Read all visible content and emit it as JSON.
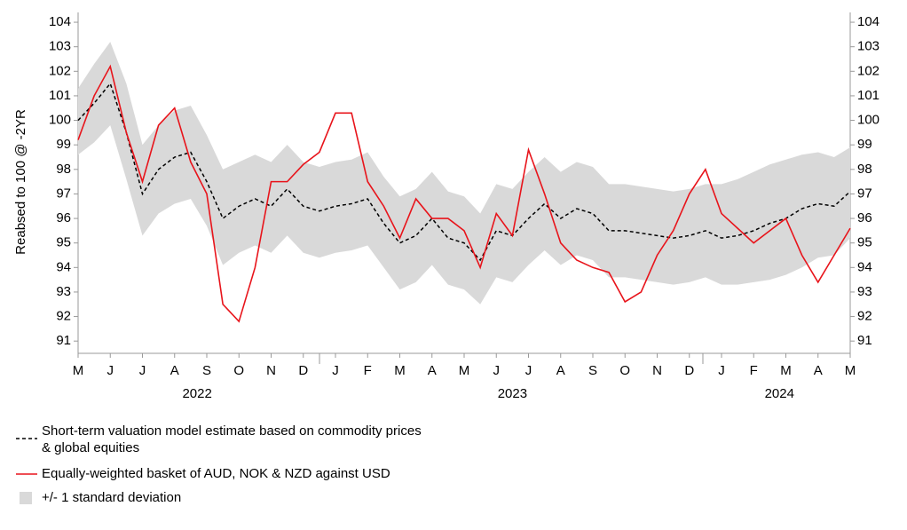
{
  "chart_data": {
    "type": "line",
    "y_label": "Reabsed to 100 @ -2YR",
    "x": [
      0,
      0.5,
      1,
      1.5,
      2,
      2.5,
      3,
      3.5,
      4,
      4.5,
      5,
      5.5,
      6,
      6.5,
      7,
      7.5,
      8,
      8.5,
      9,
      9.5,
      10,
      10.5,
      11,
      11.5,
      12,
      12.5,
      13,
      13.5,
      14,
      14.5,
      15,
      15.5,
      16,
      16.5,
      17,
      17.5,
      18,
      18.5,
      19,
      19.5,
      20,
      20.5,
      21,
      21.5,
      22,
      22.5,
      23,
      23.5,
      24
    ],
    "xlim": [
      0,
      24
    ],
    "xticks": [
      {
        "value": 0,
        "label": "M"
      },
      {
        "value": 1,
        "label": "J"
      },
      {
        "value": 2,
        "label": "J"
      },
      {
        "value": 3,
        "label": "A"
      },
      {
        "value": 4,
        "label": "S"
      },
      {
        "value": 5,
        "label": "O"
      },
      {
        "value": 6,
        "label": "N"
      },
      {
        "value": 7,
        "label": "D"
      },
      {
        "value": 8,
        "label": "J"
      },
      {
        "value": 9,
        "label": "F"
      },
      {
        "value": 10,
        "label": "M"
      },
      {
        "value": 11,
        "label": "A"
      },
      {
        "value": 12,
        "label": "M"
      },
      {
        "value": 13,
        "label": "J"
      },
      {
        "value": 14,
        "label": "J"
      },
      {
        "value": 15,
        "label": "A"
      },
      {
        "value": 16,
        "label": "S"
      },
      {
        "value": 17,
        "label": "O"
      },
      {
        "value": 18,
        "label": "N"
      },
      {
        "value": 19,
        "label": "D"
      },
      {
        "value": 20,
        "label": "J"
      },
      {
        "value": 21,
        "label": "F"
      },
      {
        "value": 22,
        "label": "M"
      },
      {
        "value": 23,
        "label": "A"
      },
      {
        "value": 24,
        "label": "M"
      }
    ],
    "x_group_labels": [
      "2022",
      "2023",
      "2024"
    ],
    "ylim": [
      90.5,
      104.4
    ],
    "yticks": [
      91,
      92,
      93,
      94,
      95,
      96,
      97,
      98,
      99,
      100,
      101,
      102,
      103,
      104
    ],
    "y2lim": [
      90.5,
      104.4
    ],
    "y2ticks": [
      91,
      92,
      93,
      94,
      95,
      96,
      97,
      98,
      99,
      100,
      101,
      102,
      103,
      104
    ],
    "band": {
      "name": "+/- 1 standard deviation",
      "color": "#d9d9d9",
      "upper": [
        101.3,
        102.3,
        103.2,
        101.5,
        99.0,
        99.8,
        100.4,
        100.6,
        99.4,
        98.0,
        98.3,
        98.6,
        98.3,
        99.0,
        98.3,
        98.1,
        98.3,
        98.4,
        98.7,
        97.7,
        96.9,
        97.2,
        97.9,
        97.1,
        96.9,
        96.2,
        97.4,
        97.2,
        97.9,
        98.5,
        97.9,
        98.3,
        98.1,
        97.4,
        97.4,
        97.3,
        97.2,
        97.1,
        97.2,
        97.4,
        97.4,
        97.6,
        97.9,
        98.2,
        98.4,
        98.6,
        98.7,
        98.5,
        98.9
      ],
      "lower": [
        98.6,
        99.1,
        99.8,
        97.6,
        95.3,
        96.2,
        96.6,
        96.8,
        95.7,
        94.1,
        94.6,
        94.9,
        94.6,
        95.3,
        94.6,
        94.4,
        94.6,
        94.7,
        94.9,
        94.0,
        93.1,
        93.4,
        94.1,
        93.3,
        93.1,
        92.5,
        93.6,
        93.4,
        94.1,
        94.7,
        94.1,
        94.5,
        94.3,
        93.6,
        93.6,
        93.5,
        93.4,
        93.3,
        93.4,
        93.6,
        93.3,
        93.3,
        93.4,
        93.5,
        93.7,
        94.0,
        94.4,
        94.5,
        95.2
      ]
    },
    "series": [
      {
        "name": "Short-term valuation model estimate based on commodity prices\n& global equities",
        "color": "#000000",
        "dash": true,
        "values": [
          100.0,
          100.7,
          101.5,
          99.5,
          97.0,
          98.0,
          98.5,
          98.7,
          97.5,
          96.0,
          96.5,
          96.8,
          96.5,
          97.2,
          96.5,
          96.3,
          96.5,
          96.6,
          96.8,
          95.8,
          95.0,
          95.3,
          96.0,
          95.2,
          95.0,
          94.3,
          95.5,
          95.3,
          96.0,
          96.6,
          96.0,
          96.4,
          96.2,
          95.5,
          95.5,
          95.4,
          95.3,
          95.2,
          95.3,
          95.5,
          95.2,
          95.3,
          95.5,
          95.8,
          96.0,
          96.4,
          96.6,
          96.5,
          97.1
        ]
      },
      {
        "name": "Equally-weighted basket of AUD, NOK & NZD against USD",
        "color": "#e8141b",
        "dash": false,
        "values": [
          99.2,
          101.0,
          102.2,
          99.5,
          97.5,
          99.8,
          100.5,
          98.3,
          97.0,
          92.5,
          91.8,
          94.0,
          97.5,
          97.5,
          98.2,
          98.7,
          100.3,
          100.3,
          97.5,
          96.5,
          95.2,
          96.8,
          96.0,
          96.0,
          95.5,
          94.0,
          96.2,
          95.3,
          98.8,
          97.0,
          95.0,
          94.3,
          94.0,
          93.8,
          92.6,
          93.0,
          94.5,
          95.5,
          97.0,
          98.0,
          96.2,
          95.6,
          95.0,
          95.5,
          96.0,
          94.5,
          93.4,
          94.5,
          95.6
        ]
      }
    ]
  }
}
